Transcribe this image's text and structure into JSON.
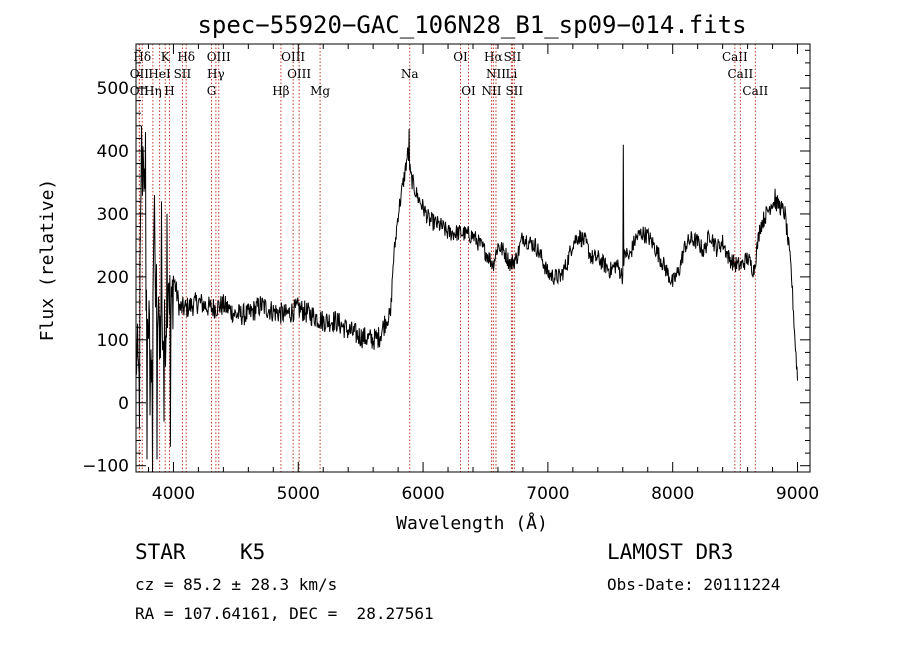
{
  "chart_data": {
    "type": "line",
    "title": "spec−55920−GAC_106N28_B1_sp09−014.fits",
    "xlabel": "Wavelength (Å)",
    "ylabel": "Flux (relative)",
    "xlim": [
      3700,
      9100
    ],
    "ylim": [
      -110,
      570
    ],
    "xticks": [
      {
        "value": 4000,
        "label": "4000"
      },
      {
        "value": 5000,
        "label": "5000"
      },
      {
        "value": 6000,
        "label": "6000"
      },
      {
        "value": 7000,
        "label": "7000"
      },
      {
        "value": 8000,
        "label": "8000"
      },
      {
        "value": 9000,
        "label": "9000"
      }
    ],
    "yticks": [
      {
        "value": -100,
        "label": "−100"
      },
      {
        "value": 0,
        "label": "0"
      },
      {
        "value": 100,
        "label": "100"
      },
      {
        "value": 200,
        "label": "200"
      },
      {
        "value": 300,
        "label": "300"
      },
      {
        "value": 400,
        "label": "400"
      },
      {
        "value": 500,
        "label": "500"
      }
    ],
    "x_minor_step": 200,
    "y_minor_step": 20,
    "series": [
      {
        "name": "flux",
        "anchors": [
          [
            3700,
            80
          ],
          [
            3720,
            40
          ],
          [
            3740,
            300
          ],
          [
            3760,
            420
          ],
          [
            3780,
            200
          ],
          [
            3800,
            120
          ],
          [
            3820,
            40
          ],
          [
            3840,
            230
          ],
          [
            3860,
            180
          ],
          [
            3880,
            120
          ],
          [
            3900,
            130
          ],
          [
            3930,
            100
          ],
          [
            3960,
            220
          ],
          [
            3980,
            120
          ],
          [
            4000,
            200
          ],
          [
            4050,
            150
          ],
          [
            4100,
            150
          ],
          [
            4200,
            160
          ],
          [
            4300,
            150
          ],
          [
            4400,
            155
          ],
          [
            4500,
            140
          ],
          [
            4600,
            140
          ],
          [
            4700,
            155
          ],
          [
            4800,
            145
          ],
          [
            4900,
            140
          ],
          [
            5000,
            150
          ],
          [
            5100,
            140
          ],
          [
            5200,
            130
          ],
          [
            5300,
            130
          ],
          [
            5400,
            115
          ],
          [
            5500,
            105
          ],
          [
            5600,
            100
          ],
          [
            5650,
            105
          ],
          [
            5700,
            130
          ],
          [
            5740,
            140
          ],
          [
            5760,
            220
          ],
          [
            5800,
            300
          ],
          [
            5850,
            360
          ],
          [
            5880,
            400
          ],
          [
            5900,
            360
          ],
          [
            5950,
            330
          ],
          [
            6000,
            310
          ],
          [
            6050,
            290
          ],
          [
            6100,
            285
          ],
          [
            6150,
            280
          ],
          [
            6200,
            270
          ],
          [
            6300,
            270
          ],
          [
            6400,
            265
          ],
          [
            6500,
            240
          ],
          [
            6560,
            220
          ],
          [
            6600,
            250
          ],
          [
            6650,
            240
          ],
          [
            6700,
            220
          ],
          [
            6750,
            230
          ],
          [
            6800,
            265
          ],
          [
            6850,
            255
          ],
          [
            6900,
            250
          ],
          [
            6950,
            230
          ],
          [
            7000,
            205
          ],
          [
            7050,
            200
          ],
          [
            7100,
            200
          ],
          [
            7150,
            220
          ],
          [
            7200,
            255
          ],
          [
            7250,
            265
          ],
          [
            7300,
            255
          ],
          [
            7350,
            230
          ],
          [
            7400,
            230
          ],
          [
            7450,
            220
          ],
          [
            7500,
            210
          ],
          [
            7550,
            220
          ],
          [
            7600,
            200
          ],
          [
            7620,
            240
          ],
          [
            7650,
            230
          ],
          [
            7700,
            260
          ],
          [
            7750,
            270
          ],
          [
            7800,
            265
          ],
          [
            7850,
            250
          ],
          [
            7900,
            230
          ],
          [
            7950,
            210
          ],
          [
            8000,
            190
          ],
          [
            8050,
            210
          ],
          [
            8100,
            250
          ],
          [
            8150,
            260
          ],
          [
            8200,
            255
          ],
          [
            8250,
            240
          ],
          [
            8300,
            270
          ],
          [
            8350,
            245
          ],
          [
            8400,
            255
          ],
          [
            8450,
            230
          ],
          [
            8500,
            220
          ],
          [
            8550,
            218
          ],
          [
            8600,
            230
          ],
          [
            8650,
            210
          ],
          [
            8700,
            280
          ],
          [
            8750,
            300
          ],
          [
            8800,
            320
          ],
          [
            8850,
            315
          ],
          [
            8900,
            300
          ],
          [
            8950,
            210
          ],
          [
            8980,
            100
          ],
          [
            9000,
            40
          ]
        ],
        "features": [
          {
            "x": 3730,
            "y": -40
          },
          {
            "x": 3745,
            "y": 440
          },
          {
            "x": 3775,
            "y": 430
          },
          {
            "x": 3790,
            "y": -90
          },
          {
            "x": 3812,
            "y": -20
          },
          {
            "x": 3832,
            "y": -110
          },
          {
            "x": 3850,
            "y": 330
          },
          {
            "x": 3870,
            "y": -90
          },
          {
            "x": 3905,
            "y": 320
          },
          {
            "x": 3925,
            "y": -30
          },
          {
            "x": 3950,
            "y": 300
          },
          {
            "x": 3975,
            "y": -70
          },
          {
            "x": 7606,
            "y": 410
          },
          {
            "x": 5890,
            "y": 435
          },
          {
            "x": 8820,
            "y": 340
          }
        ]
      }
    ],
    "line_markers": [
      {
        "name": "Hδ",
        "wavelength": 3750,
        "row": 0
      },
      {
        "name": "K",
        "wavelength": 3934,
        "row": 0
      },
      {
        "name": "Hδ",
        "wavelength": 4102,
        "row": 0
      },
      {
        "name": "OIII",
        "wavelength": 4363,
        "row": 0
      },
      {
        "name": "OIII",
        "wavelength": 4959,
        "row": 0
      },
      {
        "name": "OI",
        "wavelength": 6300,
        "row": 0
      },
      {
        "name": "Hα",
        "wavelength": 6563,
        "row": 0
      },
      {
        "name": "SII",
        "wavelength": 6716,
        "row": 0
      },
      {
        "name": "CaII",
        "wavelength": 8498,
        "row": 0
      },
      {
        "name": "OII",
        "wavelength": 3727,
        "row": 1
      },
      {
        "name": "HeI",
        "wavelength": 3889,
        "row": 1
      },
      {
        "name": "SII",
        "wavelength": 4072,
        "row": 1
      },
      {
        "name": "Hγ",
        "wavelength": 4340,
        "row": 1
      },
      {
        "name": "OIII",
        "wavelength": 5007,
        "row": 1
      },
      {
        "name": "Na",
        "wavelength": 5893,
        "row": 1
      },
      {
        "name": "NII",
        "wavelength": 6584,
        "row": 1
      },
      {
        "name": "Li",
        "wavelength": 6708,
        "row": 1
      },
      {
        "name": "CaII",
        "wavelength": 8542,
        "row": 1
      },
      {
        "name": "OII",
        "wavelength": 3727,
        "row": 2
      },
      {
        "name": "Hη",
        "wavelength": 3835,
        "row": 2
      },
      {
        "name": "H",
        "wavelength": 3968,
        "row": 2
      },
      {
        "name": "G",
        "wavelength": 4305,
        "row": 2
      },
      {
        "name": "Hβ",
        "wavelength": 4861,
        "row": 2
      },
      {
        "name": "Mg",
        "wavelength": 5175,
        "row": 2
      },
      {
        "name": "OI",
        "wavelength": 6364,
        "row": 2
      },
      {
        "name": "NII",
        "wavelength": 6548,
        "row": 2
      },
      {
        "name": "SII",
        "wavelength": 6731,
        "row": 2
      },
      {
        "name": "CaII",
        "wavelength": 8662,
        "row": 2
      }
    ]
  },
  "info": {
    "class": "STAR",
    "subclass": "K5",
    "survey": "LAMOST DR3",
    "cz": "cz = 85.2 ± 28.3 km/s",
    "obs_date": "Obs-Date: 20111224",
    "coords": "RA = 107.64161, DEC =  28.27561"
  }
}
